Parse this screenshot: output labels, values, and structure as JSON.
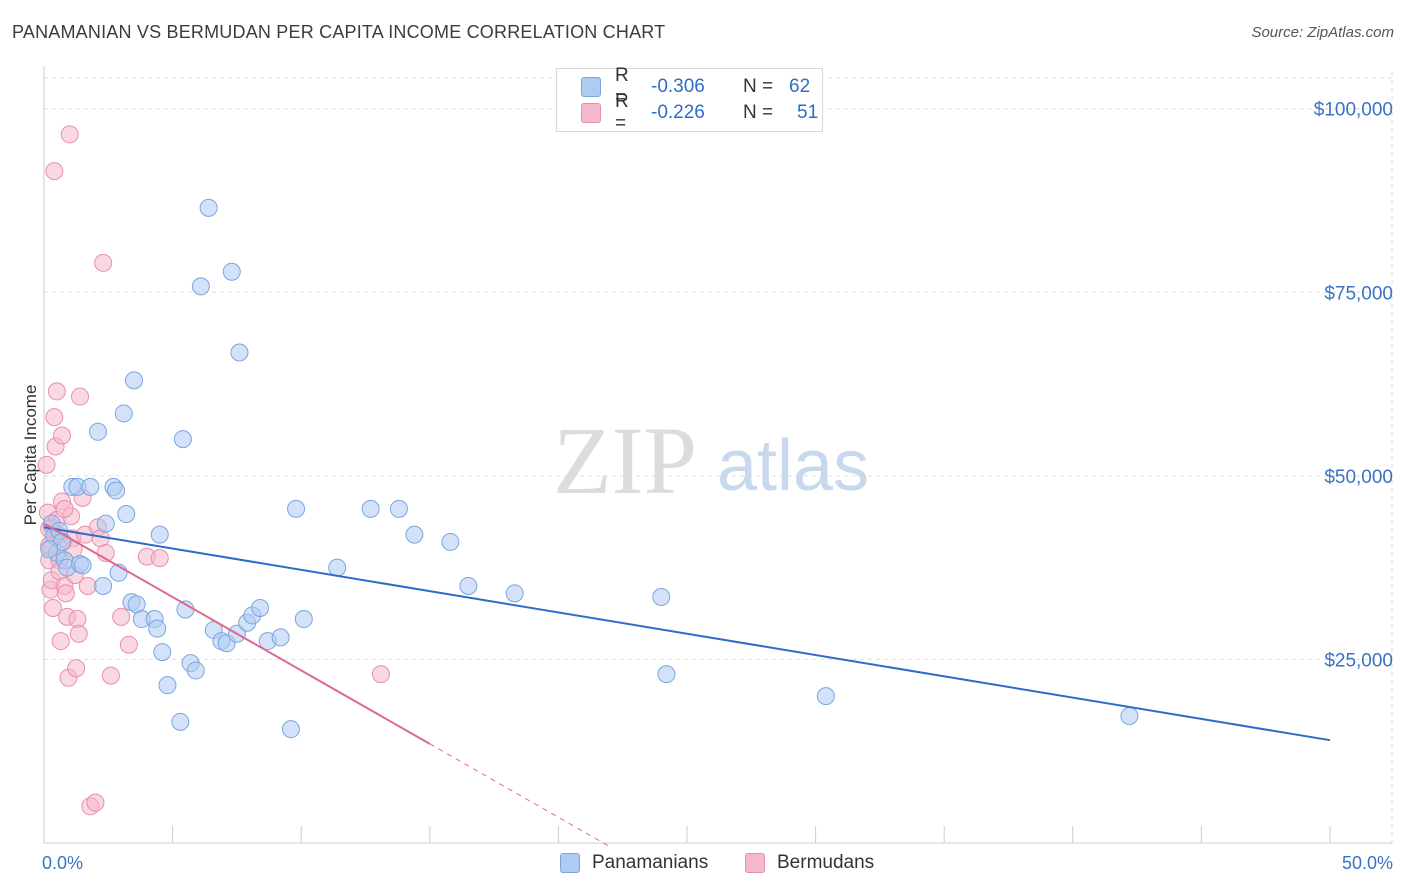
{
  "header": {
    "title": "PANAMANIAN VS BERMUDAN PER CAPITA INCOME CORRELATION CHART",
    "source": "Source: ZipAtlas.com"
  },
  "watermark": {
    "zip": "ZIP",
    "atlas": "atlas"
  },
  "legend": {
    "rows": [
      {
        "r_label": "R =",
        "r_value": "-0.306",
        "n_label": "N =",
        "n_value": "62"
      },
      {
        "r_label": "R =",
        "r_value": "-0.226",
        "n_label": "N =",
        "n_value": "51"
      }
    ]
  },
  "colors": {
    "blue_fill": "#aecbf2",
    "blue_stroke": "#7aa6e0",
    "blue_line": "#2f6cc7",
    "pink_fill": "#f6b8cc",
    "pink_stroke": "#e88fac",
    "pink_line": "#e06890",
    "grid": "#dddddd"
  },
  "chart_data": {
    "type": "scatter",
    "title": "PANAMANIAN VS BERMUDAN PER CAPITA INCOME CORRELATION CHART",
    "ylabel": "Per Capita Income",
    "xlabel": "",
    "xlim": [
      0,
      50
    ],
    "ylim": [
      0,
      105000
    ],
    "x_tick_labels": [
      "0.0%",
      "50.0%"
    ],
    "y_ticks": [
      25000,
      50000,
      75000,
      100000
    ],
    "y_tick_labels": [
      "$25,000",
      "$50,000",
      "$75,000",
      "$100,000"
    ],
    "grid": true,
    "series": [
      {
        "name": "Panamanians",
        "color": "#aecbf2",
        "trend": {
          "x": [
            0,
            50
          ],
          "y": [
            43000,
            14000
          ]
        },
        "points": [
          [
            0.3,
            43500
          ],
          [
            0.4,
            41800
          ],
          [
            0.5,
            39500
          ],
          [
            0.6,
            42500
          ],
          [
            0.7,
            41000
          ],
          [
            0.8,
            38500
          ],
          [
            0.9,
            37500
          ],
          [
            1.1,
            48500
          ],
          [
            1.3,
            48500
          ],
          [
            1.4,
            38000
          ],
          [
            1.5,
            37800
          ],
          [
            1.8,
            48500
          ],
          [
            2.1,
            56000
          ],
          [
            2.3,
            35000
          ],
          [
            2.4,
            43500
          ],
          [
            2.7,
            48500
          ],
          [
            2.8,
            48000
          ],
          [
            2.9,
            36800
          ],
          [
            3.1,
            58500
          ],
          [
            3.2,
            44800
          ],
          [
            3.4,
            32800
          ],
          [
            3.5,
            63000
          ],
          [
            3.6,
            32500
          ],
          [
            3.8,
            30500
          ],
          [
            4.3,
            30500
          ],
          [
            4.4,
            29200
          ],
          [
            4.5,
            42000
          ],
          [
            4.6,
            26000
          ],
          [
            4.8,
            21500
          ],
          [
            5.3,
            16500
          ],
          [
            5.4,
            55000
          ],
          [
            5.5,
            31800
          ],
          [
            5.7,
            24500
          ],
          [
            5.9,
            23500
          ],
          [
            6.1,
            75800
          ],
          [
            6.4,
            86500
          ],
          [
            6.6,
            29000
          ],
          [
            6.9,
            27500
          ],
          [
            7.1,
            27200
          ],
          [
            7.3,
            77800
          ],
          [
            7.5,
            28500
          ],
          [
            7.6,
            66800
          ],
          [
            7.9,
            30000
          ],
          [
            8.1,
            31000
          ],
          [
            8.4,
            32000
          ],
          [
            8.7,
            27500
          ],
          [
            9.2,
            28000
          ],
          [
            9.6,
            15500
          ],
          [
            9.8,
            45500
          ],
          [
            10.1,
            30500
          ],
          [
            11.4,
            37500
          ],
          [
            12.7,
            45500
          ],
          [
            13.8,
            45500
          ],
          [
            14.4,
            42000
          ],
          [
            15.8,
            41000
          ],
          [
            16.5,
            35000
          ],
          [
            18.3,
            34000
          ],
          [
            24.0,
            33500
          ],
          [
            24.2,
            23000
          ],
          [
            30.4,
            20000
          ],
          [
            42.2,
            17300
          ],
          [
            0.2,
            40000
          ]
        ]
      },
      {
        "name": "Bermudans",
        "color": "#f6b8cc",
        "trend": {
          "x": [
            0,
            15
          ],
          "y": [
            43500,
            13500
          ]
        },
        "trend_dashed": {
          "x": [
            15,
            22
          ],
          "y": [
            13500,
            -500
          ]
        },
        "points": [
          [
            0.1,
            51500
          ],
          [
            0.15,
            45000
          ],
          [
            0.2,
            40500
          ],
          [
            0.2,
            38500
          ],
          [
            0.25,
            34500
          ],
          [
            0.3,
            43000
          ],
          [
            0.3,
            35800
          ],
          [
            0.35,
            32000
          ],
          [
            0.4,
            91500
          ],
          [
            0.4,
            58000
          ],
          [
            0.45,
            54000
          ],
          [
            0.5,
            61500
          ],
          [
            0.5,
            44000
          ],
          [
            0.55,
            42000
          ],
          [
            0.6,
            38500
          ],
          [
            0.6,
            37000
          ],
          [
            0.65,
            27500
          ],
          [
            0.7,
            55500
          ],
          [
            0.7,
            46500
          ],
          [
            0.75,
            41000
          ],
          [
            0.8,
            35000
          ],
          [
            0.85,
            34000
          ],
          [
            0.9,
            30800
          ],
          [
            0.95,
            22500
          ],
          [
            1.0,
            96500
          ],
          [
            1.05,
            44500
          ],
          [
            1.1,
            41500
          ],
          [
            1.15,
            40000
          ],
          [
            1.2,
            36500
          ],
          [
            1.25,
            23800
          ],
          [
            1.3,
            30500
          ],
          [
            1.35,
            28500
          ],
          [
            1.4,
            60800
          ],
          [
            1.5,
            47000
          ],
          [
            1.6,
            42000
          ],
          [
            1.7,
            35000
          ],
          [
            1.8,
            5000
          ],
          [
            2.0,
            5500
          ],
          [
            2.1,
            43000
          ],
          [
            2.2,
            41500
          ],
          [
            2.3,
            79000
          ],
          [
            2.6,
            22800
          ],
          [
            3.0,
            30800
          ],
          [
            3.3,
            27000
          ],
          [
            4.0,
            39000
          ],
          [
            4.5,
            38800
          ],
          [
            13.1,
            23000
          ],
          [
            0.2,
            42800
          ],
          [
            0.3,
            40200
          ],
          [
            0.8,
            45500
          ],
          [
            2.4,
            39500
          ]
        ]
      }
    ]
  }
}
